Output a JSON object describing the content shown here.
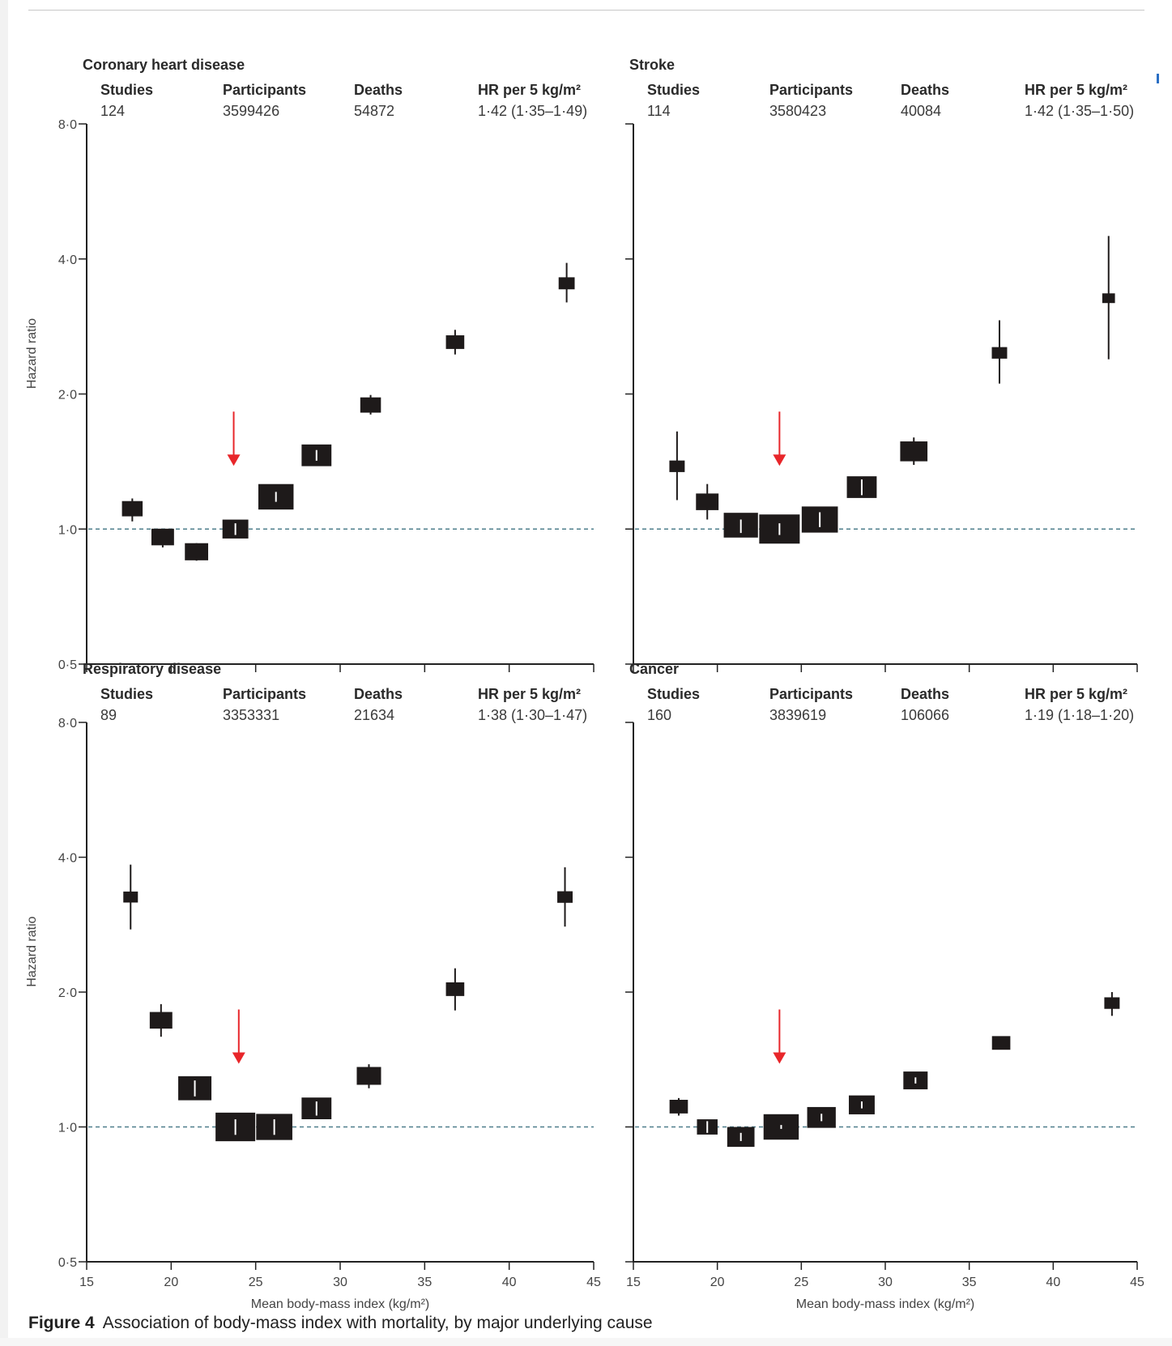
{
  "caption": {
    "figure_label": "Figure 4",
    "text": "Association of body-mass index with mortality, by major underlying cause"
  },
  "column_headers": {
    "studies": "Studies",
    "participants": "Participants",
    "deaths": "Deaths",
    "hr": "HR per 5 kg/m²"
  },
  "colors": {
    "marker": "#1e1a1a",
    "reference_line": "#4f7f8c",
    "arrow": "#e8262a",
    "axis": "#222222"
  },
  "chart_data": [
    {
      "type": "scatter",
      "subtype": "forest-plot",
      "title": "Coronary heart disease",
      "stats": {
        "studies": "124",
        "participants": "3599426",
        "deaths": "54872",
        "hr": "1·42 (1·35–1·49)"
      },
      "xlabel": "",
      "ylabel": "Hazard ratio",
      "xlim": [
        15,
        45
      ],
      "ylim": [
        0.5,
        8.0
      ],
      "yscale": "log",
      "xticks": [
        "15",
        "20",
        "25",
        "30",
        "35",
        "40",
        "45"
      ],
      "xtick_labels_shown": false,
      "yticks": [
        "0·5",
        "1·0",
        "2·0",
        "4·0",
        "8·0"
      ],
      "ytick_labels_shown": true,
      "reference_line": 1.0,
      "reference_bmi_arrow": 23.7,
      "points": [
        {
          "bmi": 17.7,
          "hr": 1.11,
          "lo": 1.04,
          "hi": 1.17,
          "weight": 0.15
        },
        {
          "bmi": 19.5,
          "hr": 0.96,
          "lo": 0.91,
          "hi": 1.0,
          "weight": 0.2
        },
        {
          "bmi": 21.5,
          "hr": 0.89,
          "lo": 0.85,
          "hi": 0.93,
          "weight": 0.22
        },
        {
          "bmi": 23.8,
          "hr": 1.0,
          "lo": 0.97,
          "hi": 1.03,
          "weight": 0.3
        },
        {
          "bmi": 26.2,
          "hr": 1.18,
          "lo": 1.15,
          "hi": 1.21,
          "weight": 0.7
        },
        {
          "bmi": 28.6,
          "hr": 1.46,
          "lo": 1.42,
          "hi": 1.5,
          "weight": 0.45
        },
        {
          "bmi": 31.8,
          "hr": 1.89,
          "lo": 1.8,
          "hi": 1.99,
          "weight": 0.15
        },
        {
          "bmi": 36.8,
          "hr": 2.61,
          "lo": 2.45,
          "hi": 2.78,
          "weight": 0.1
        },
        {
          "bmi": 43.4,
          "hr": 3.53,
          "lo": 3.2,
          "hi": 3.92,
          "weight": 0.06
        }
      ]
    },
    {
      "type": "scatter",
      "subtype": "forest-plot",
      "title": "Stroke",
      "stats": {
        "studies": "114",
        "participants": "3580423",
        "deaths": "40084",
        "hr": "1·42 (1·35–1·50)"
      },
      "xlabel": "",
      "ylabel": "",
      "xlim": [
        15,
        45
      ],
      "ylim": [
        0.5,
        8.0
      ],
      "yscale": "log",
      "xticks": [
        "15",
        "20",
        "25",
        "30",
        "35",
        "40",
        "45"
      ],
      "xtick_labels_shown": false,
      "yticks": [
        "0·5",
        "1·0",
        "2·0",
        "4·0",
        "8·0"
      ],
      "ytick_labels_shown": false,
      "reference_line": 1.0,
      "reference_bmi_arrow": 23.7,
      "points": [
        {
          "bmi": 17.6,
          "hr": 1.38,
          "lo": 1.16,
          "hi": 1.65,
          "weight": 0.05
        },
        {
          "bmi": 19.4,
          "hr": 1.15,
          "lo": 1.05,
          "hi": 1.26,
          "weight": 0.2
        },
        {
          "bmi": 21.4,
          "hr": 1.02,
          "lo": 0.98,
          "hi": 1.05,
          "weight": 0.65
        },
        {
          "bmi": 23.7,
          "hr": 1.0,
          "lo": 0.97,
          "hi": 1.03,
          "weight": 1.0
        },
        {
          "bmi": 26.1,
          "hr": 1.05,
          "lo": 1.01,
          "hi": 1.09,
          "weight": 0.75
        },
        {
          "bmi": 28.6,
          "hr": 1.24,
          "lo": 1.19,
          "hi": 1.29,
          "weight": 0.45
        },
        {
          "bmi": 31.7,
          "hr": 1.49,
          "lo": 1.39,
          "hi": 1.6,
          "weight": 0.35
        },
        {
          "bmi": 36.8,
          "hr": 2.47,
          "lo": 2.11,
          "hi": 2.92,
          "weight": 0.05
        },
        {
          "bmi": 43.3,
          "hr": 3.27,
          "lo": 2.39,
          "hi": 4.5,
          "weight": 0.02
        }
      ]
    },
    {
      "type": "scatter",
      "subtype": "forest-plot",
      "title": "Respiratory disease",
      "stats": {
        "studies": "89",
        "participants": "3353331",
        "deaths": "21634",
        "hr": "1·38 (1·30–1·47)"
      },
      "xlabel": "Mean body-mass index (kg/m²)",
      "ylabel": "Hazard ratio",
      "xlim": [
        15,
        45
      ],
      "ylim": [
        0.5,
        8.0
      ],
      "yscale": "log",
      "xticks": [
        "15",
        "20",
        "25",
        "30",
        "35",
        "40",
        "45"
      ],
      "xtick_labels_shown": true,
      "yticks": [
        "0·5",
        "1·0",
        "2·0",
        "4·0",
        "8·0"
      ],
      "ytick_labels_shown": true,
      "reference_line": 1.0,
      "reference_bmi_arrow": 24.0,
      "points": [
        {
          "bmi": 17.6,
          "hr": 3.26,
          "lo": 2.76,
          "hi": 3.85,
          "weight": 0.04
        },
        {
          "bmi": 19.4,
          "hr": 1.73,
          "lo": 1.59,
          "hi": 1.88,
          "weight": 0.2
        },
        {
          "bmi": 21.4,
          "hr": 1.22,
          "lo": 1.17,
          "hi": 1.27,
          "weight": 0.6
        },
        {
          "bmi": 23.8,
          "hr": 1.0,
          "lo": 0.96,
          "hi": 1.04,
          "weight": 0.95
        },
        {
          "bmi": 26.1,
          "hr": 1.0,
          "lo": 0.96,
          "hi": 1.04,
          "weight": 0.75
        },
        {
          "bmi": 28.6,
          "hr": 1.1,
          "lo": 1.06,
          "hi": 1.14,
          "weight": 0.45
        },
        {
          "bmi": 31.7,
          "hr": 1.3,
          "lo": 1.22,
          "hi": 1.38,
          "weight": 0.25
        },
        {
          "bmi": 36.8,
          "hr": 2.03,
          "lo": 1.82,
          "hi": 2.26,
          "weight": 0.1
        },
        {
          "bmi": 43.3,
          "hr": 3.26,
          "lo": 2.8,
          "hi": 3.8,
          "weight": 0.05
        }
      ]
    },
    {
      "type": "scatter",
      "subtype": "forest-plot",
      "title": "Cancer",
      "stats": {
        "studies": "160",
        "participants": "3839619",
        "deaths": "106066",
        "hr": "1·19 (1·18–1·20)"
      },
      "xlabel": "Mean body-mass index (kg/m²)",
      "ylabel": "",
      "xlim": [
        15,
        45
      ],
      "ylim": [
        0.5,
        8.0
      ],
      "yscale": "log",
      "xticks": [
        "15",
        "20",
        "25",
        "30",
        "35",
        "40",
        "45"
      ],
      "xtick_labels_shown": true,
      "yticks": [
        "0·5",
        "1·0",
        "2·0",
        "4·0",
        "8·0"
      ],
      "ytick_labels_shown": false,
      "reference_line": 1.0,
      "reference_bmi_arrow": 23.7,
      "points": [
        {
          "bmi": 17.7,
          "hr": 1.11,
          "lo": 1.06,
          "hi": 1.16,
          "weight": 0.1
        },
        {
          "bmi": 19.4,
          "hr": 1.0,
          "lo": 0.97,
          "hi": 1.03,
          "weight": 0.15
        },
        {
          "bmi": 21.4,
          "hr": 0.95,
          "lo": 0.93,
          "hi": 0.97,
          "weight": 0.35
        },
        {
          "bmi": 23.8,
          "hr": 1.0,
          "lo": 0.99,
          "hi": 1.01,
          "weight": 0.7
        },
        {
          "bmi": 26.2,
          "hr": 1.05,
          "lo": 1.03,
          "hi": 1.07,
          "weight": 0.4
        },
        {
          "bmi": 28.6,
          "hr": 1.12,
          "lo": 1.1,
          "hi": 1.14,
          "weight": 0.3
        },
        {
          "bmi": 31.8,
          "hr": 1.27,
          "lo": 1.25,
          "hi": 1.29,
          "weight": 0.25
        },
        {
          "bmi": 36.9,
          "hr": 1.54,
          "lo": 1.49,
          "hi": 1.59,
          "weight": 0.1
        },
        {
          "bmi": 43.5,
          "hr": 1.89,
          "lo": 1.77,
          "hi": 2.0,
          "weight": 0.05
        }
      ]
    }
  ]
}
